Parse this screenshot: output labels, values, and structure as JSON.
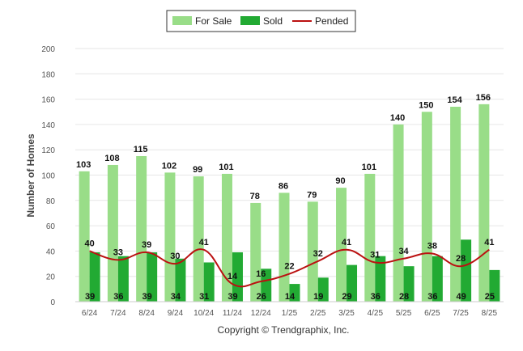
{
  "chart_data": {
    "type": "bar",
    "ylabel": "Number of Homes",
    "ylim": [
      0,
      200
    ],
    "yticks": [
      0,
      20,
      40,
      60,
      80,
      100,
      120,
      140,
      160,
      180,
      200
    ],
    "grid": true,
    "legend_position": "top-center",
    "categories": [
      "6/24",
      "7/24",
      "8/24",
      "9/24",
      "10/24",
      "11/24",
      "12/24",
      "1/25",
      "2/25",
      "3/25",
      "4/25",
      "5/25",
      "6/25",
      "7/25",
      "8/25"
    ],
    "series": [
      {
        "name": "For Sale",
        "type": "bar",
        "color": "#99dd88",
        "values": [
          103,
          108,
          115,
          102,
          99,
          101,
          78,
          86,
          79,
          90,
          101,
          140,
          150,
          154,
          156
        ]
      },
      {
        "name": "Sold",
        "type": "bar",
        "color": "#22aa33",
        "values": [
          39,
          36,
          39,
          34,
          31,
          39,
          26,
          14,
          19,
          29,
          36,
          28,
          36,
          49,
          25
        ]
      },
      {
        "name": "Pended",
        "type": "line",
        "color": "#bb1111",
        "values": [
          40,
          33,
          39,
          30,
          41,
          14,
          16,
          22,
          32,
          41,
          31,
          34,
          38,
          28,
          41
        ]
      }
    ],
    "footer": "Copyright © Trendgraphix, Inc."
  }
}
